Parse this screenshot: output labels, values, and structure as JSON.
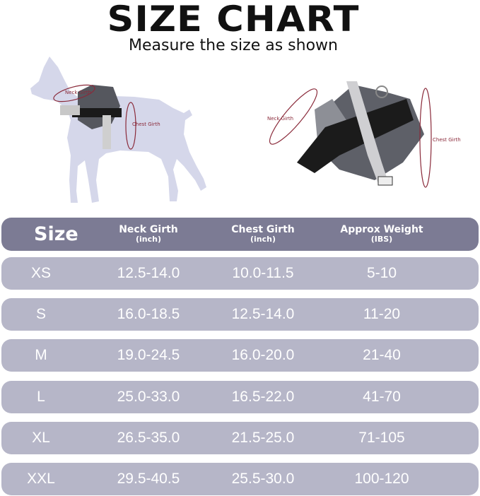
{
  "title": "SIZE CHART",
  "subtitle": "Measure the size as shown",
  "illustration": {
    "dog_labels": {
      "neck": "Neck Girth",
      "chest": "Chest Girth"
    },
    "harness_labels": {
      "neck": "Neck Girth",
      "chest": "Chest Girth"
    }
  },
  "table": {
    "headers": [
      {
        "main": "Size",
        "sub": ""
      },
      {
        "main": "Neck Girth",
        "sub": "(inch)"
      },
      {
        "main": "Chest Girth",
        "sub": "(inch)"
      },
      {
        "main": "Approx Weight",
        "sub": "(IBS)"
      }
    ],
    "rows": [
      [
        "XS",
        "12.5-14.0",
        "10.0-11.5",
        "5-10"
      ],
      [
        "S",
        "16.0-18.5",
        "12.5-14.0",
        "11-20"
      ],
      [
        "M",
        "19.0-24.5",
        "16.0-20.0",
        "21-40"
      ],
      [
        "L",
        "25.0-33.0",
        "16.5-22.0",
        "41-70"
      ],
      [
        "XL",
        "26.5-35.0",
        "21.5-25.0",
        "71-105"
      ],
      [
        "XXL",
        "29.5-40.5",
        "25.5-30.0",
        "100-120"
      ]
    ]
  },
  "colors": {
    "header_bg": "#7c7b94",
    "row_bg": "#b6b6c8",
    "dog_silhouette": "#d5d7ea",
    "measure_line": "#8a2a3a"
  }
}
